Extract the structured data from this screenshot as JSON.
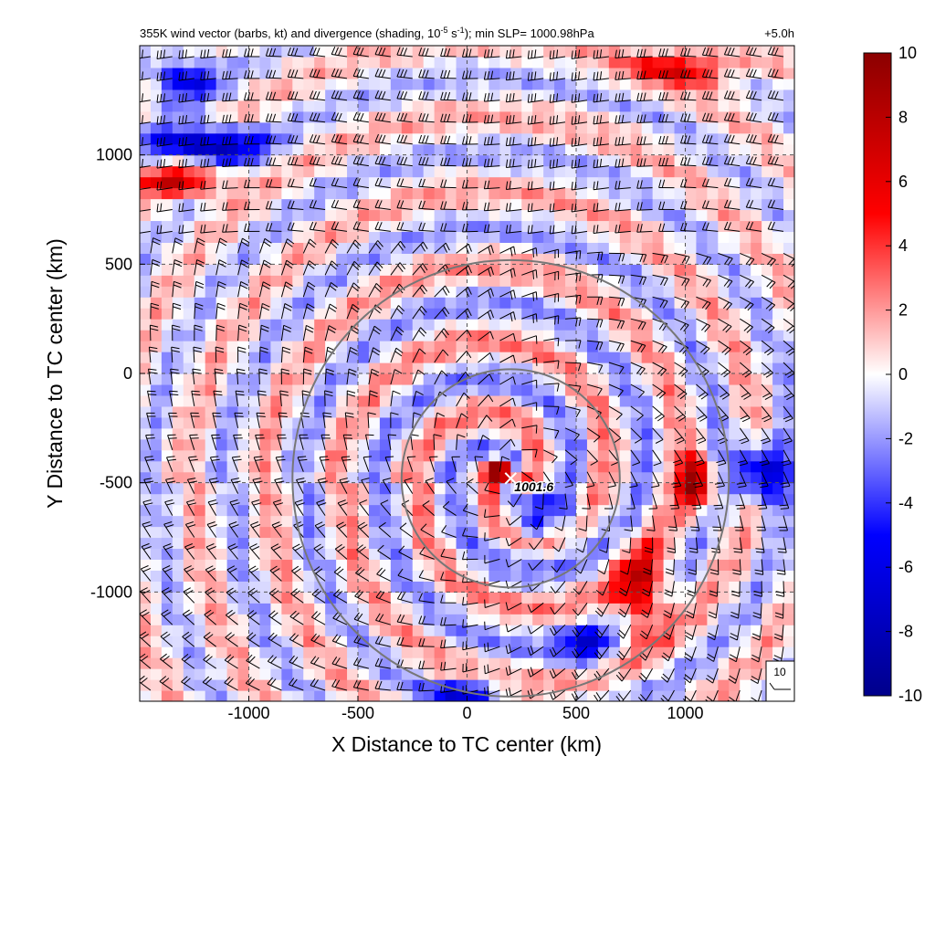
{
  "chart_data": {
    "type": "heatmap",
    "title_left": "355K wind vector (barbs, kt) and divergence (shading, 10",
    "title_exp1": "-5",
    "title_mid": " s",
    "title_exp2": "-1",
    "title_right": "); min SLP= 1000.98hPa",
    "time_label": "+5.0h",
    "xlabel": "X Distance to TC center (km)",
    "ylabel": "Y Distance to TC center (km)",
    "xlim": [
      -1500,
      1500
    ],
    "ylim": [
      -1500,
      1500
    ],
    "xticks": [
      -1000,
      -500,
      0,
      500,
      1000
    ],
    "yticks": [
      -1000,
      -500,
      0,
      500,
      1000
    ],
    "xtick_labels": [
      "-1000",
      "-500",
      "0",
      "500",
      "1000"
    ],
    "ytick_labels": [
      "-1000",
      "-500",
      "0",
      "500",
      "1000"
    ],
    "grid": true,
    "colorbar": {
      "min": -10,
      "max": 10,
      "ticks": [
        10,
        8,
        6,
        4,
        2,
        0,
        -2,
        -4,
        -6,
        -8,
        -10
      ],
      "tick_labels": [
        "10",
        "8",
        "6",
        "4",
        "2",
        "0",
        "-2",
        "-4",
        "-6",
        "-8",
        "-10"
      ],
      "colormap": [
        "#00008b",
        "#0000ff",
        "#ffffff",
        "#ff0000",
        "#8b0000"
      ]
    },
    "center_marker": {
      "x": 200,
      "y": -480,
      "label": "1001.6"
    },
    "range_circles": [
      {
        "cx": 200,
        "cy": -480,
        "r_km": 500
      },
      {
        "cx": 200,
        "cy": -480,
        "r_km": 1000
      }
    ],
    "reference_barb": {
      "label": "10"
    },
    "divergence_features": [
      {
        "x": 150,
        "y": -450,
        "value": 9,
        "sx": 60,
        "sy": 60
      },
      {
        "x": 1050,
        "y": -500,
        "value": 9,
        "sx": 80,
        "sy": 120
      },
      {
        "x": 800,
        "y": -1000,
        "value": 7,
        "sx": 120,
        "sy": 200
      },
      {
        "x": 1350,
        "y": -450,
        "value": -8,
        "sx": 120,
        "sy": 140
      },
      {
        "x": -1200,
        "y": 1050,
        "value": -9,
        "sx": 250,
        "sy": 80
      },
      {
        "x": -1300,
        "y": 880,
        "value": 7,
        "sx": 200,
        "sy": 70
      },
      {
        "x": -1300,
        "y": 1350,
        "value": -6,
        "sx": 150,
        "sy": 100
      },
      {
        "x": 1000,
        "y": 1400,
        "value": 6,
        "sx": 250,
        "sy": 80
      },
      {
        "x": 0,
        "y": -1450,
        "value": -7,
        "sx": 150,
        "sy": 50
      },
      {
        "x": 550,
        "y": -1250,
        "value": -5,
        "sx": 120,
        "sy": 100
      },
      {
        "x": 450,
        "y": -650,
        "value": -4,
        "sx": 100,
        "sy": 80
      },
      {
        "x": 300,
        "y": -700,
        "value": -5,
        "sx": 80,
        "sy": 60
      }
    ]
  }
}
